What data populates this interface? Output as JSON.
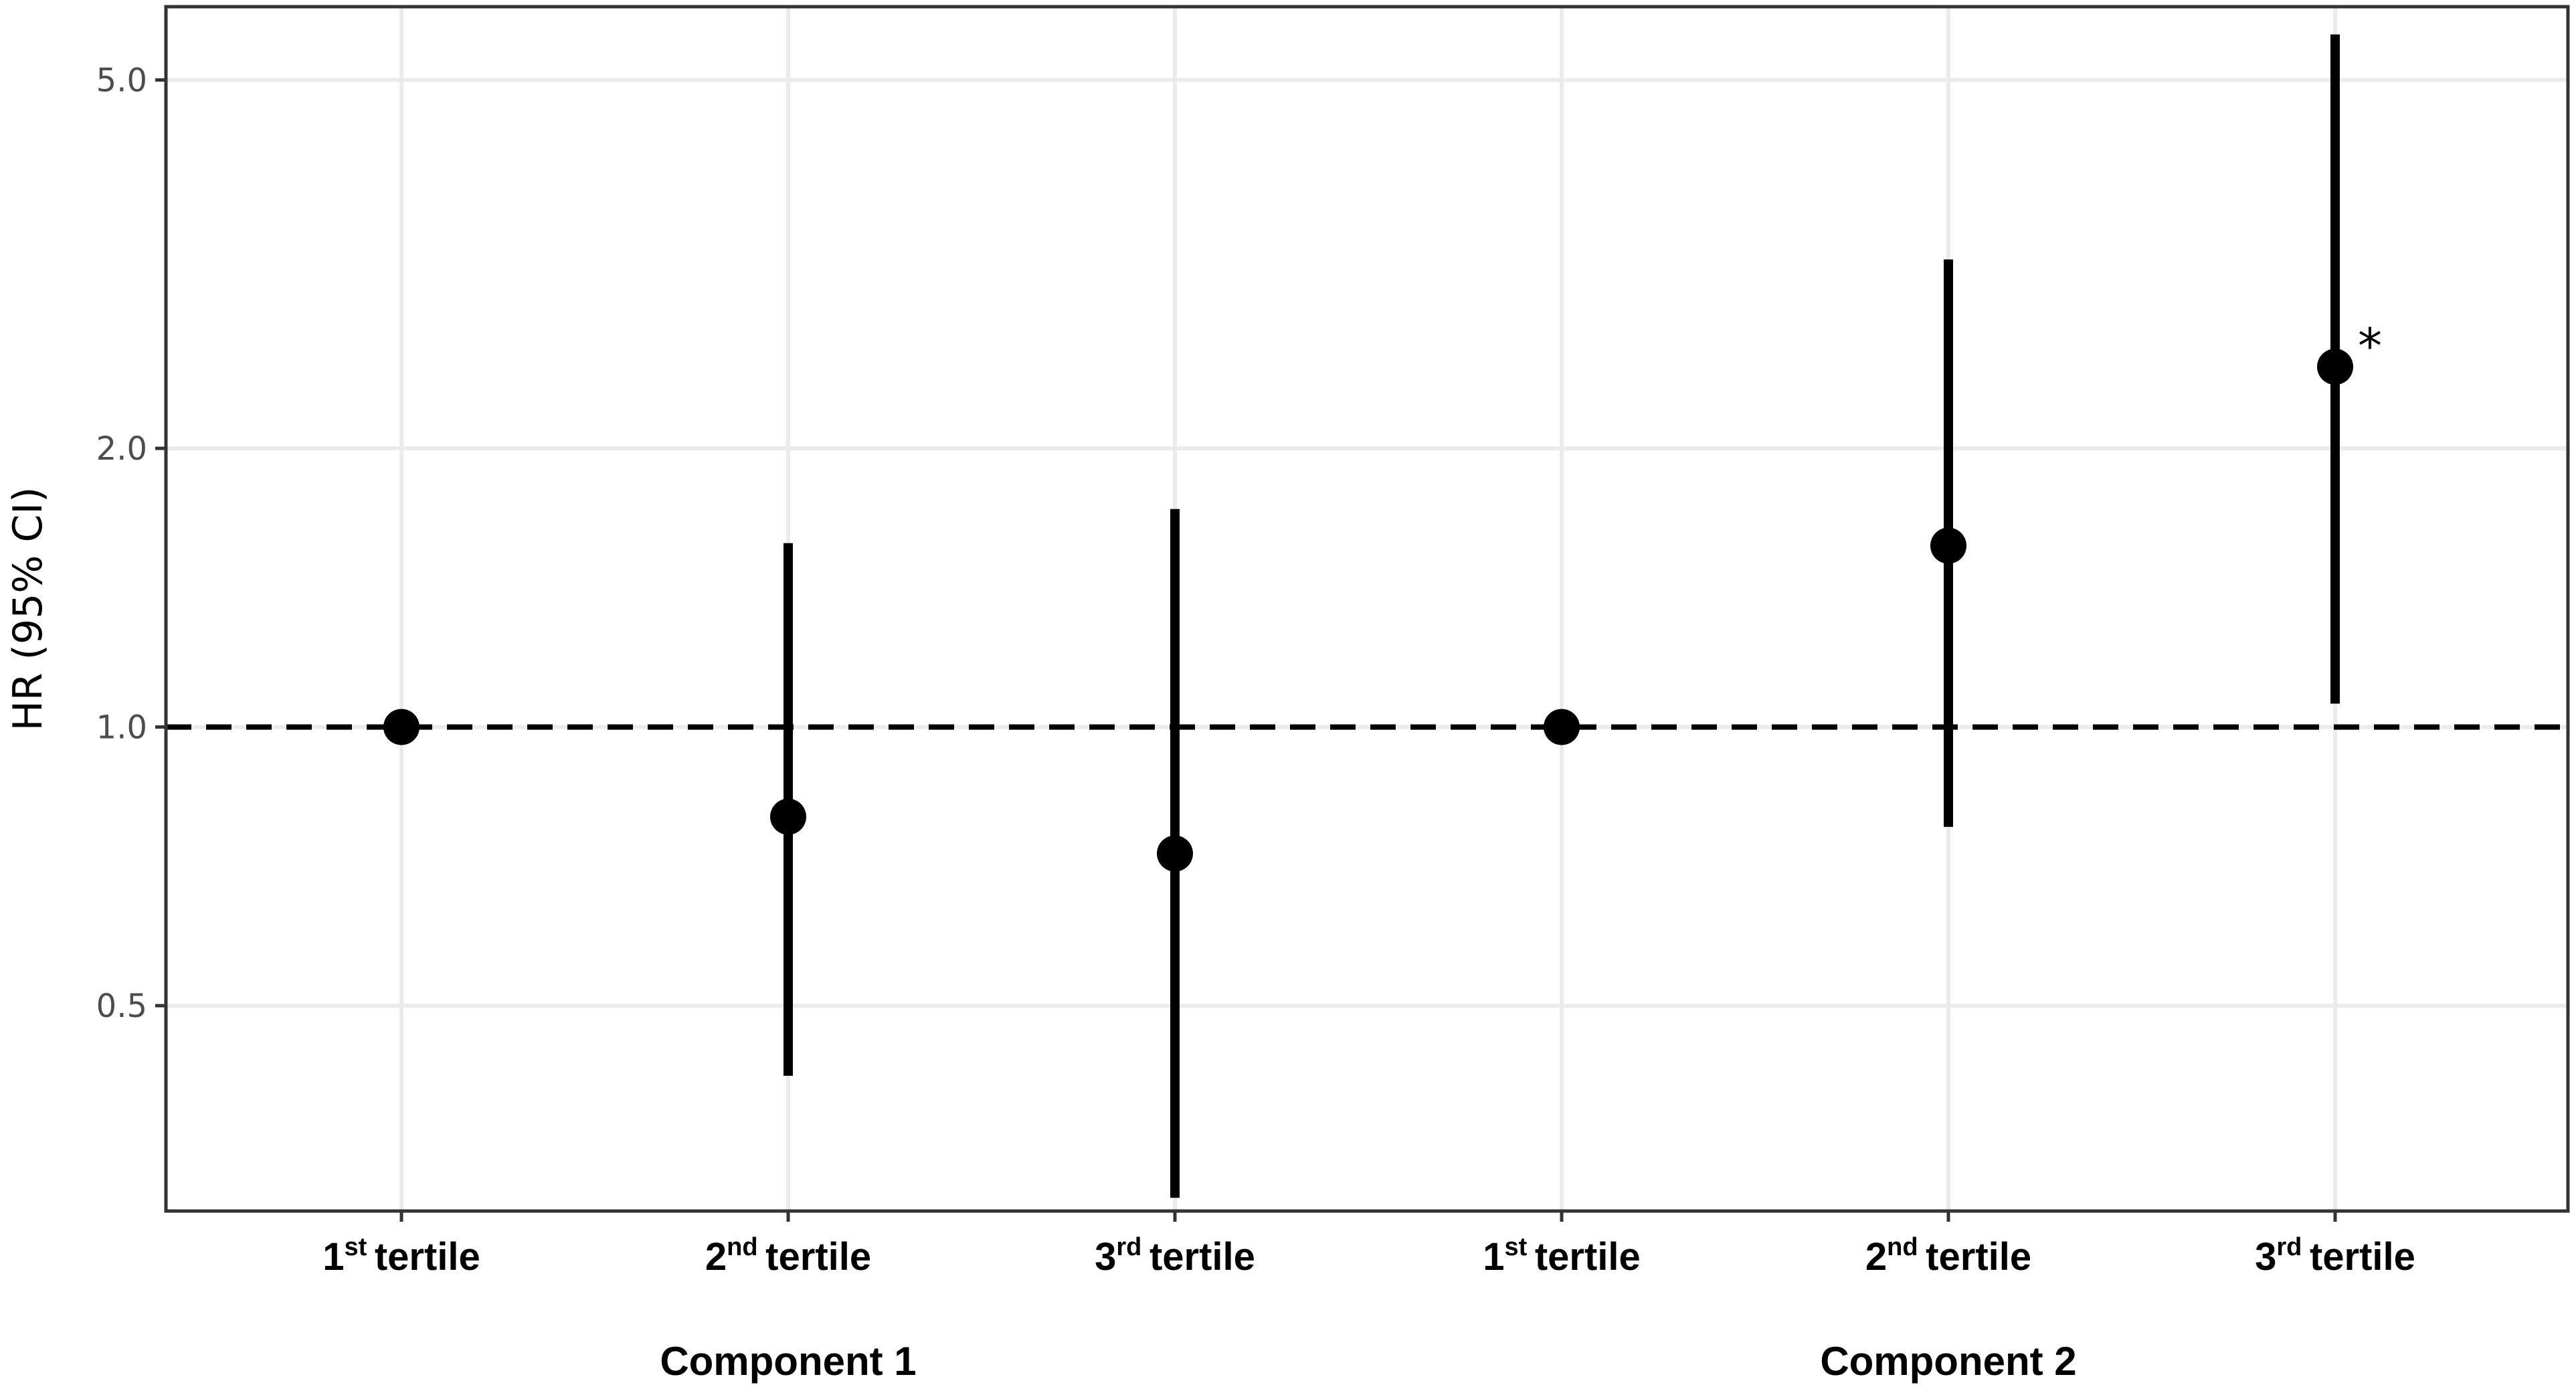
{
  "chart_data": {
    "type": "scatter",
    "title": "",
    "ylabel": "HR (95% CI)",
    "yscale": "log",
    "ylim": [
      0.3,
      6.0
    ],
    "yticks": [
      {
        "value": 0.5,
        "label": "0.5"
      },
      {
        "value": 1.0,
        "label": "1.0"
      },
      {
        "value": 2.0,
        "label": "2.0"
      },
      {
        "value": 5.0,
        "label": "5.0"
      }
    ],
    "reference_line": {
      "value": 1.0,
      "style": "dashed"
    },
    "grid": true,
    "groups": [
      {
        "name": "Component 1",
        "points": [
          {
            "ordinal": "1",
            "suffix": "st",
            "word": "tertile",
            "hr": 1.0,
            "ci": [
              1.0,
              1.0
            ],
            "significant": false
          },
          {
            "ordinal": "2",
            "suffix": "nd",
            "word": "tertile",
            "hr": 0.8,
            "ci": [
              0.42,
              1.58
            ],
            "significant": false
          },
          {
            "ordinal": "3",
            "suffix": "rd",
            "word": "tertile",
            "hr": 0.73,
            "ci": [
              0.31,
              1.72
            ],
            "significant": false
          }
        ]
      },
      {
        "name": "Component 2",
        "points": [
          {
            "ordinal": "1",
            "suffix": "st",
            "word": "tertile",
            "hr": 1.0,
            "ci": [
              1.0,
              1.0
            ],
            "significant": false
          },
          {
            "ordinal": "2",
            "suffix": "nd",
            "word": "tertile",
            "hr": 1.57,
            "ci": [
              0.78,
              3.2
            ],
            "significant": false
          },
          {
            "ordinal": "3",
            "suffix": "rd",
            "word": "tertile",
            "hr": 2.45,
            "ci": [
              1.06,
              5.6
            ],
            "significant": true
          }
        ]
      }
    ],
    "significance_marker": "*"
  }
}
